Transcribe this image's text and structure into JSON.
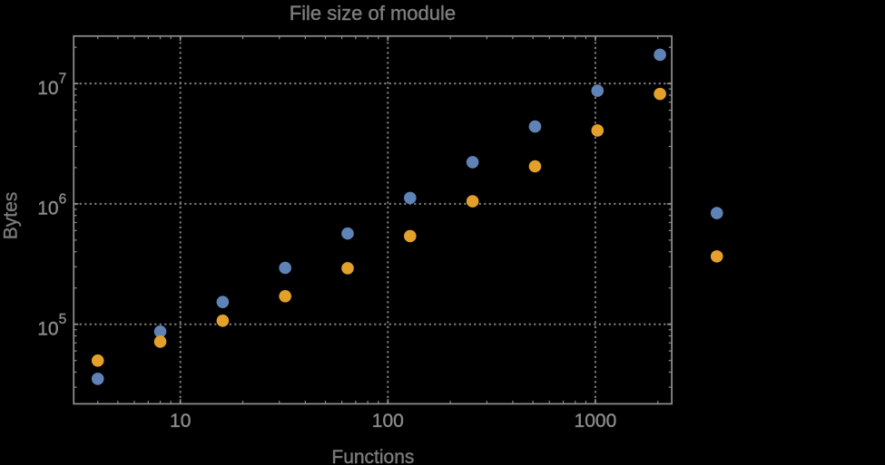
{
  "chart_data": {
    "type": "scatter",
    "title": "File size of module",
    "xlabel": "Functions",
    "ylabel": "Bytes",
    "x_scale": "log",
    "y_scale": "log",
    "grid": "dotted",
    "legend": "none",
    "background": "#000000",
    "xlim": [
      3.062,
      2335
    ],
    "ylim": [
      21820,
      24764000
    ],
    "x_ticks": [
      10,
      100,
      1000
    ],
    "x_tick_labels": [
      "10",
      "100",
      "1000"
    ],
    "y_ticks": [
      100000,
      1000000,
      10000000
    ],
    "y_tick_base": "10",
    "y_tick_exponents": [
      "5",
      "6",
      "7"
    ],
    "series": [
      {
        "name": "series-1",
        "color": "#6083B7",
        "x": [
          4,
          8,
          16,
          32,
          64,
          128,
          256,
          512,
          1024,
          2048,
          3850
        ],
        "y": [
          35200,
          86900,
          153000,
          294000,
          567000,
          1120000,
          2220000,
          4390000,
          8710000,
          17300000,
          838000
        ]
      },
      {
        "name": "series-2",
        "color": "#E3A02A",
        "x": [
          4,
          8,
          16,
          32,
          64,
          128,
          256,
          512,
          1024,
          2048,
          3850
        ],
        "y": [
          49900,
          71600,
          107000,
          171000,
          292000,
          540000,
          1050000,
          2050000,
          4070000,
          8190000,
          366000
        ]
      }
    ],
    "colors": {
      "frame": "#8a8a8a",
      "grid": "#7f7f7f",
      "tick_label": "#8a8a8a",
      "title": "#7d7d7d",
      "axis_label": "#7a7a7a"
    }
  }
}
